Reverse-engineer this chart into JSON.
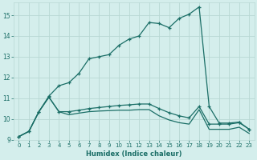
{
  "xlabel": "Humidex (Indice chaleur)",
  "bg_color": "#d4eeec",
  "grid_color": "#b8d8d4",
  "line_color": "#1a6e66",
  "xlim": [
    -0.5,
    23.5
  ],
  "ylim": [
    9.0,
    15.6
  ],
  "yticks": [
    9,
    10,
    11,
    12,
    13,
    14,
    15
  ],
  "xticks": [
    0,
    1,
    2,
    3,
    4,
    5,
    6,
    7,
    8,
    9,
    10,
    11,
    12,
    13,
    14,
    15,
    16,
    17,
    18,
    19,
    20,
    21,
    22,
    23
  ],
  "curve1_x": [
    0,
    1,
    2,
    3,
    4,
    5,
    6,
    7,
    8,
    9,
    10,
    11,
    12,
    13,
    14,
    15,
    16,
    17,
    18,
    19,
    20,
    21,
    22,
    23
  ],
  "curve1_y": [
    9.15,
    9.4,
    10.35,
    11.1,
    11.6,
    11.75,
    12.2,
    12.9,
    13.0,
    13.1,
    13.55,
    13.85,
    14.0,
    14.65,
    14.6,
    14.4,
    14.85,
    15.05,
    15.4,
    10.6,
    9.8,
    9.8,
    9.85,
    9.5
  ],
  "curve2_x": [
    0,
    1,
    2,
    3,
    4,
    5,
    6,
    7,
    8,
    9,
    10,
    11,
    12,
    13,
    14,
    15,
    16,
    17,
    18,
    19,
    20,
    21,
    22,
    23
  ],
  "curve2_y": [
    9.15,
    9.4,
    10.35,
    11.05,
    10.35,
    10.35,
    10.42,
    10.5,
    10.55,
    10.6,
    10.65,
    10.68,
    10.72,
    10.72,
    10.5,
    10.3,
    10.15,
    10.05,
    10.6,
    9.75,
    9.75,
    9.75,
    9.82,
    9.5
  ],
  "curve3_x": [
    0,
    1,
    2,
    3,
    4,
    5,
    6,
    7,
    8,
    9,
    10,
    11,
    12,
    13,
    14,
    15,
    16,
    17,
    18,
    19,
    20,
    21,
    22,
    23
  ],
  "curve3_y": [
    9.15,
    9.4,
    10.35,
    11.05,
    10.35,
    10.2,
    10.28,
    10.35,
    10.38,
    10.4,
    10.42,
    10.42,
    10.45,
    10.45,
    10.15,
    9.95,
    9.82,
    9.75,
    10.45,
    9.5,
    9.5,
    9.5,
    9.6,
    9.3
  ]
}
